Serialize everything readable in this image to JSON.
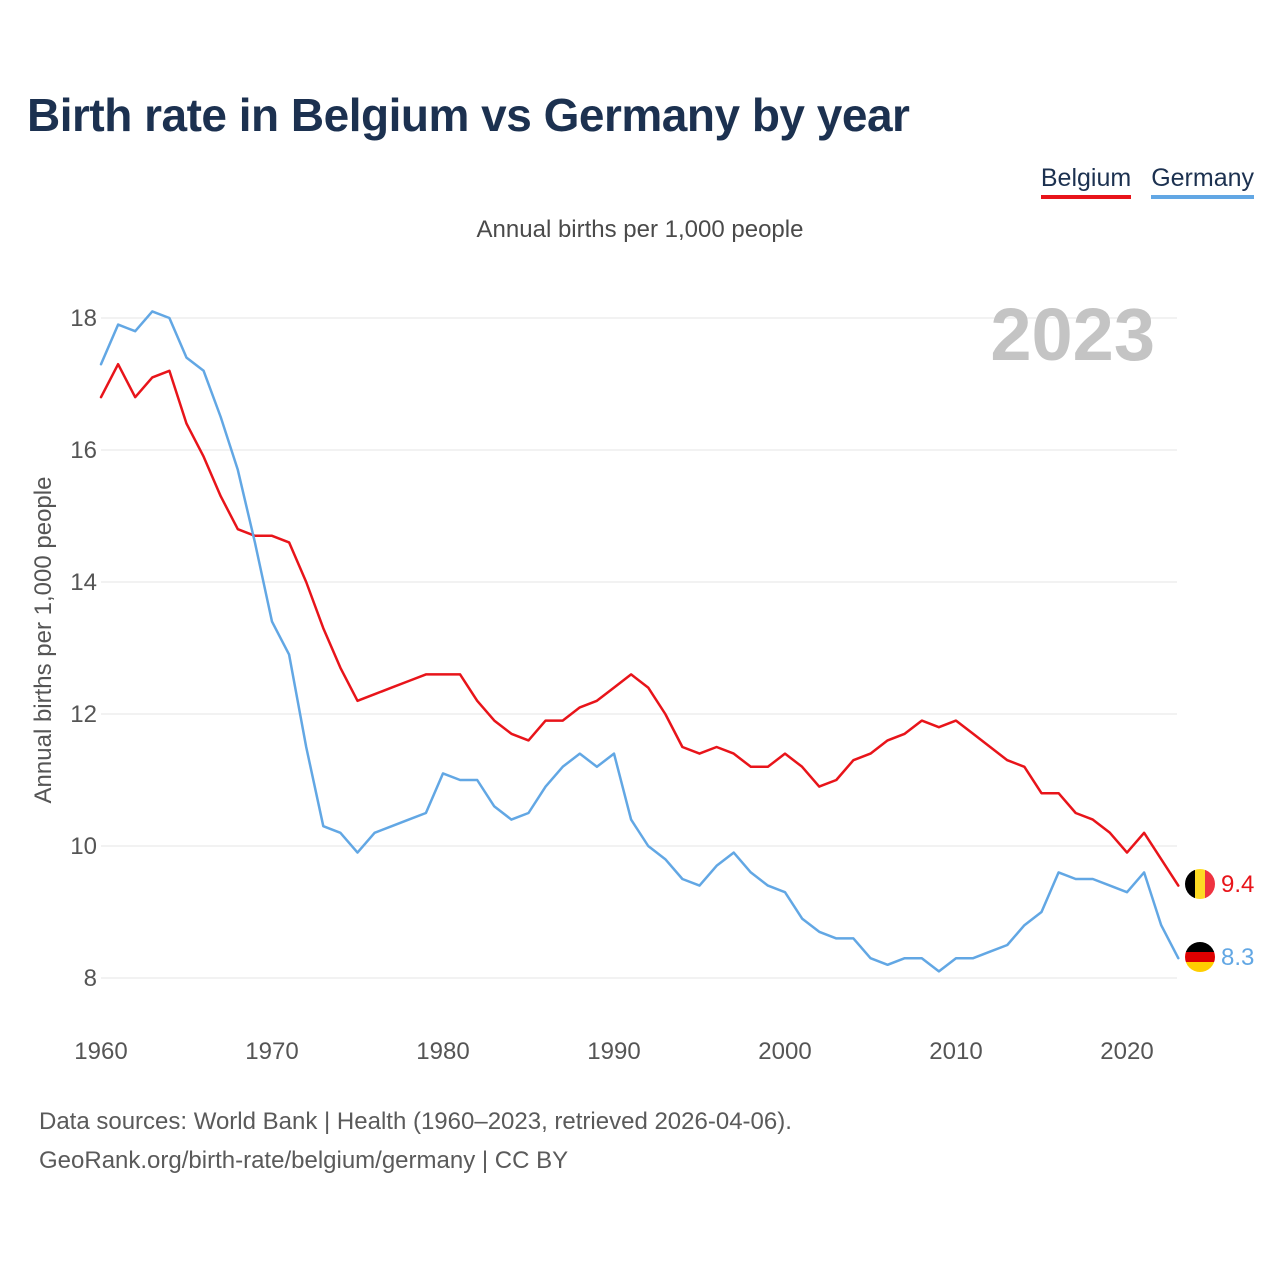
{
  "title": "Birth rate in Belgium vs Germany by year",
  "subtitle": "Annual births per 1,000 people",
  "legend": {
    "belgium": "Belgium",
    "germany": "Germany"
  },
  "colors": {
    "belgium": "#e8141a",
    "germany": "#62a7e4",
    "title": "#1c3150",
    "watermark": "#c4c4c4"
  },
  "year_watermark": "2023",
  "end_labels": {
    "belgium": "9.4",
    "germany": "8.3"
  },
  "source": {
    "line1": "Data sources: World Bank | Health (1960–2023, retrieved 2026-04-06).",
    "line2": "GeoRank.org/birth-rate/belgium/germany | CC BY"
  },
  "chart_data": {
    "type": "line",
    "title": "Birth rate in Belgium vs Germany by year",
    "ylabel": "Annual births per 1,000 people",
    "xlabel": "",
    "xlim": [
      1960,
      2024
    ],
    "ylim": [
      7,
      18.4
    ],
    "x_ticks": [
      1960,
      1970,
      1980,
      1990,
      2000,
      2010,
      2020
    ],
    "y_ticks": [
      8,
      10,
      12,
      14,
      16,
      18
    ],
    "grid": true,
    "x": [
      1960,
      1961,
      1962,
      1963,
      1964,
      1965,
      1966,
      1967,
      1968,
      1969,
      1970,
      1971,
      1972,
      1973,
      1974,
      1975,
      1976,
      1977,
      1978,
      1979,
      1980,
      1981,
      1982,
      1983,
      1984,
      1985,
      1986,
      1987,
      1988,
      1989,
      1990,
      1991,
      1992,
      1993,
      1994,
      1995,
      1996,
      1997,
      1998,
      1999,
      2000,
      2001,
      2002,
      2003,
      2004,
      2005,
      2006,
      2007,
      2008,
      2009,
      2010,
      2011,
      2012,
      2013,
      2014,
      2015,
      2016,
      2017,
      2018,
      2019,
      2020,
      2021,
      2022,
      2023
    ],
    "series": [
      {
        "name": "Belgium",
        "values": [
          16.8,
          17.3,
          16.8,
          17.1,
          17.2,
          16.4,
          15.9,
          15.3,
          14.8,
          14.7,
          14.7,
          14.6,
          14.0,
          13.3,
          12.7,
          12.2,
          12.3,
          12.4,
          12.5,
          12.6,
          12.6,
          12.6,
          12.2,
          11.9,
          11.7,
          11.6,
          11.9,
          11.9,
          12.1,
          12.2,
          12.4,
          12.6,
          12.4,
          12.0,
          11.5,
          11.4,
          11.5,
          11.4,
          11.2,
          11.2,
          11.4,
          11.2,
          10.9,
          11.0,
          11.3,
          11.4,
          11.6,
          11.7,
          11.9,
          11.8,
          11.9,
          11.7,
          11.5,
          11.3,
          11.2,
          10.8,
          10.8,
          10.5,
          10.4,
          10.2,
          9.9,
          10.2,
          9.8,
          9.4
        ]
      },
      {
        "name": "Germany",
        "values": [
          17.3,
          17.9,
          17.8,
          18.1,
          18.0,
          17.4,
          17.2,
          16.5,
          15.7,
          14.6,
          13.4,
          12.9,
          11.5,
          10.3,
          10.2,
          9.9,
          10.2,
          10.3,
          10.4,
          10.5,
          11.1,
          11.0,
          11.0,
          10.6,
          10.4,
          10.5,
          10.9,
          11.2,
          11.4,
          11.2,
          11.4,
          10.4,
          10.0,
          9.8,
          9.5,
          9.4,
          9.7,
          9.9,
          9.6,
          9.4,
          9.3,
          8.9,
          8.7,
          8.6,
          8.6,
          8.3,
          8.2,
          8.3,
          8.3,
          8.1,
          8.3,
          8.3,
          8.4,
          8.5,
          8.8,
          9.0,
          9.6,
          9.5,
          9.5,
          9.4,
          9.3,
          9.6,
          8.8,
          8.3
        ]
      }
    ]
  }
}
